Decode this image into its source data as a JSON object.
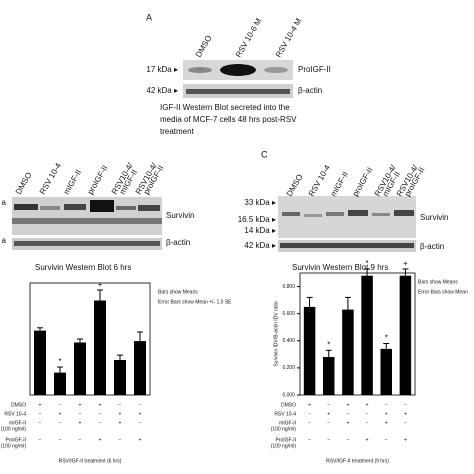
{
  "panel_a": {
    "letter": "A",
    "lanes": [
      [
        "DMSO"
      ],
      [
        "RSV 10-6 M"
      ],
      [
        "RSV 10-4 M"
      ]
    ],
    "markers": [
      {
        "kda": "17 kDa ▸",
        "protein": "ProIGF-II"
      },
      {
        "kda": "42 kDa ▸",
        "protein": "β-actin"
      }
    ],
    "caption": [
      "IGF-II Western Blot secreted into the",
      "media of MCF-7 cells 48 hrs post-RSV",
      "treatment"
    ]
  },
  "panel_b": {
    "lanes": [
      [
        "DMSO"
      ],
      [
        "RSV 10-4"
      ],
      [
        "mIGF-II"
      ],
      [
        "proIGF-II"
      ],
      [
        "RSV10-4/",
        "mIGF-II"
      ],
      [
        "RSV10-4/",
        "proIGF-II"
      ]
    ],
    "markers": [
      {
        "kda": "a",
        "protein": "Survivin"
      },
      {
        "kda": "a",
        "protein": "β-actin"
      }
    ],
    "caption": "Survivin Western Blot 6 hrs"
  },
  "panel_c": {
    "letter": "C",
    "lanes": [
      [
        "DMSO"
      ],
      [
        "RSV 10-4"
      ],
      [
        "mIGF-II"
      ],
      [
        "proIGF-II"
      ],
      [
        "RSV10-4/",
        "mIGF-II"
      ],
      [
        "RSV10-4/",
        "proIGF-II"
      ]
    ],
    "kda": [
      "33 kDa ▸",
      "16.5 kDa ▸",
      "14 kDa ▸",
      "42 kDa ▸"
    ],
    "proteins": [
      "Survivin",
      "β-actin"
    ],
    "caption": "Survivin Western Blot  9 hrs"
  },
  "chart_data": [
    {
      "type": "bar",
      "categories": [
        null,
        null,
        null,
        null,
        null,
        null
      ],
      "values": [
        0.92,
        0.32,
        0.75,
        1.35,
        0.5,
        0.77
      ],
      "errors": [
        0.04,
        0.08,
        0.05,
        0.15,
        0.07,
        0.13
      ],
      "color": "#000000",
      "ylim": [
        0,
        1.6
      ],
      "symbols": [
        {
          "category": 1,
          "text": "*"
        },
        {
          "category": 3,
          "text": "+"
        }
      ],
      "annotations": [
        "Bars show Means",
        "Error Bars show Mean +/- 1.0 SE"
      ],
      "table": [
        {
          "label": [
            "DMSO"
          ],
          "cells": [
            "+",
            "−",
            "+",
            "+",
            "−",
            "−"
          ]
        },
        {
          "label": [
            "RSV 10-4"
          ],
          "cells": [
            "−",
            "+",
            "−",
            "−",
            "+",
            "+"
          ]
        },
        {
          "label": [
            "mIGF-II",
            "(100 ng/ml)"
          ],
          "cells": [
            "−",
            "−",
            "+",
            "−",
            "+",
            "−"
          ]
        },
        {
          "label": [
            "ProIGF-II",
            "(100 ng/ml)"
          ],
          "cells": [
            "−",
            "−",
            "−",
            "+",
            "−",
            "+"
          ]
        }
      ],
      "xlabel": "RSV/IGF-II treatment (6 hrs)"
    },
    {
      "type": "bar",
      "categories": [
        null,
        null,
        null,
        null,
        null,
        null
      ],
      "values": [
        0.65,
        0.28,
        0.63,
        0.88,
        0.34,
        0.88
      ],
      "errors": [
        0.07,
        0.05,
        0.09,
        0.05,
        0.04,
        0.05
      ],
      "color": "#000000",
      "ylim": [
        0,
        0.9
      ],
      "yticks": [
        {
          "value": 0,
          "label": "0.000"
        },
        {
          "value": 0.2,
          "label": "0.200"
        },
        {
          "value": 0.4,
          "label": "0.400"
        },
        {
          "value": 0.6,
          "label": "0.600"
        },
        {
          "value": 0.8,
          "label": "0.800"
        }
      ],
      "ylabel": "Survivin IDV/B-actin IDV ratio",
      "symbols": [
        {
          "category": 1,
          "text": "*"
        },
        {
          "category": 3,
          "text": "*"
        },
        {
          "category": 4,
          "text": "*"
        },
        {
          "category": 5,
          "text": "+"
        }
      ],
      "annotations": [
        "Bars show Means",
        "Error Bars show Mean"
      ],
      "table": [
        {
          "label": [
            "DMSO"
          ],
          "cells": [
            "+",
            "−",
            "+",
            "+",
            "−",
            "−"
          ]
        },
        {
          "label": [
            "RSV 10-4"
          ],
          "cells": [
            "−",
            "+",
            "−",
            "−",
            "+",
            "+"
          ]
        },
        {
          "label": [
            "mIGF-II",
            "(100 ng/ml)"
          ],
          "cells": [
            "−",
            "−",
            "+",
            "−",
            "+",
            "−"
          ]
        },
        {
          "label": [
            "ProIGF-II",
            "(100 ng/ml)"
          ],
          "cells": [
            "−",
            "−",
            "−",
            "+",
            "−",
            "+"
          ]
        }
      ],
      "xlabel": "RSV/IGF-II treatment (9 hrs)"
    }
  ]
}
